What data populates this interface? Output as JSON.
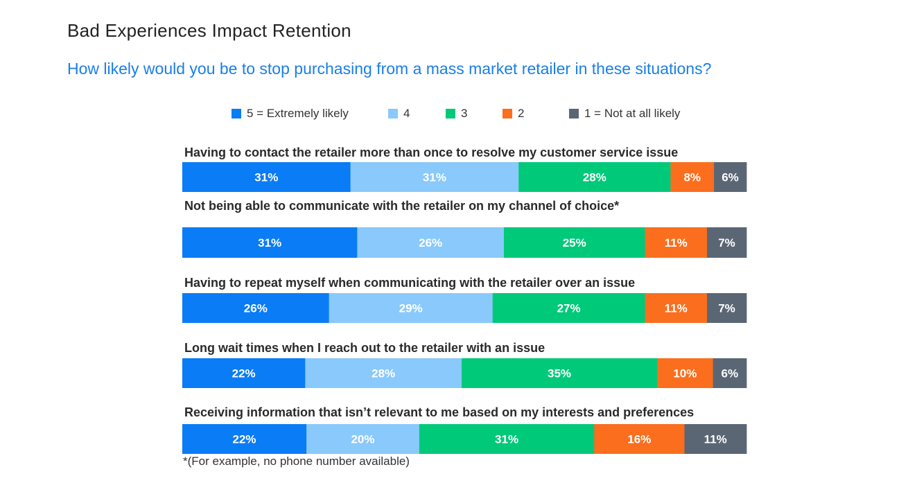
{
  "title": "Bad Experiences Impact Retention",
  "subtitle": "How likely would you be to stop purchasing from a mass market retailer in these situations?",
  "footnote": "*(For example, no phone number available)",
  "chart_data": {
    "type": "bar",
    "orientation": "horizontal",
    "stacked": true,
    "legend_position": "top",
    "grid": false,
    "categories": [
      "Having to contact the retailer more than once to resolve my customer service issue",
      "Not being able to communicate with the retailer on my channel of choice*",
      "Having to repeat myself when communicating with the retailer over an issue",
      "Long wait times when I reach out to the retailer with an issue",
      "Receiving information that isn’t relevant to me based on my interests and preferences"
    ],
    "series": [
      {
        "name": "5 = Extremely likely",
        "color": "#0a7cf5",
        "values": [
          31,
          31,
          26,
          22,
          22
        ],
        "labels": [
          "31%",
          "31%",
          "26%",
          "22%",
          "22%"
        ]
      },
      {
        "name": "4",
        "color": "#8ac9fb",
        "values": [
          31,
          26,
          29,
          28,
          20
        ],
        "labels": [
          "31%",
          "26%",
          "29%",
          "28%",
          "20%"
        ]
      },
      {
        "name": "3",
        "color": "#00c97a",
        "values": [
          28,
          25,
          27,
          35,
          31
        ],
        "labels": [
          "28%",
          "25%",
          "27%",
          "35%",
          "31%"
        ]
      },
      {
        "name": "2",
        "color": "#fa6e1e",
        "values": [
          8,
          11,
          11,
          10,
          16
        ],
        "labels": [
          "8%",
          "11%",
          "11%",
          "10%",
          "16%"
        ]
      },
      {
        "name": "1 = Not at all likely",
        "color": "#5b6675",
        "values": [
          6,
          7,
          7,
          6,
          11
        ],
        "labels": [
          "6%",
          "7%",
          "7%",
          "6%",
          "11%"
        ]
      }
    ]
  }
}
